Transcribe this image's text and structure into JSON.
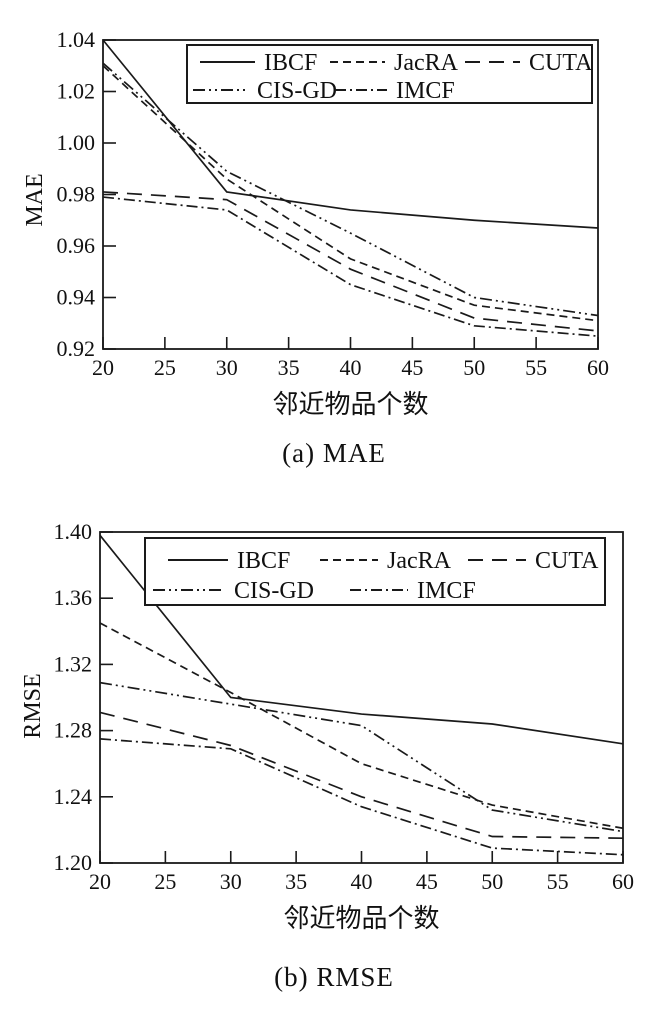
{
  "colors": {
    "line": "#1a1a1a",
    "text": "#111111",
    "background": "#ffffff"
  },
  "chart_data": [
    {
      "type": "line",
      "caption": "(a) MAE",
      "xlabel": "邻近物品个数",
      "ylabel": "MAE",
      "x": [
        20,
        30,
        40,
        50,
        60
      ],
      "x_ticks": [
        20,
        25,
        30,
        35,
        40,
        45,
        50,
        55,
        60
      ],
      "y_ticks": [
        0.92,
        0.94,
        0.96,
        0.98,
        1.0,
        1.02,
        1.04
      ],
      "xlim": [
        20,
        60
      ],
      "ylim": [
        0.92,
        1.04
      ],
      "grid": false,
      "legend_position": "top-inside",
      "legend_rows": [
        [
          "IBCF",
          "JacRA",
          "CUTA"
        ],
        [
          "CIS-GD",
          "IMCF"
        ]
      ],
      "series": [
        {
          "name": "IBCF",
          "line_style": "solid",
          "values": [
            1.04,
            0.981,
            0.974,
            0.97,
            0.967
          ]
        },
        {
          "name": "JacRA",
          "line_style": "dashed",
          "values": [
            1.03,
            0.986,
            0.955,
            0.937,
            0.931
          ]
        },
        {
          "name": "CUTA",
          "line_style": "long-dash",
          "values": [
            0.981,
            0.978,
            0.951,
            0.932,
            0.927
          ]
        },
        {
          "name": "CIS-GD",
          "line_style": "dash-dot-dot",
          "values": [
            1.031,
            0.989,
            0.965,
            0.94,
            0.933
          ]
        },
        {
          "name": "IMCF",
          "line_style": "dash-dot",
          "values": [
            0.979,
            0.974,
            0.945,
            0.929,
            0.925
          ]
        }
      ]
    },
    {
      "type": "line",
      "caption": "(b) RMSE",
      "xlabel": "邻近物品个数",
      "ylabel": "RMSE",
      "x": [
        20,
        30,
        40,
        50,
        60
      ],
      "x_ticks": [
        20,
        25,
        30,
        35,
        40,
        45,
        50,
        55,
        60
      ],
      "y_ticks": [
        1.2,
        1.24,
        1.28,
        1.32,
        1.36,
        1.4
      ],
      "xlim": [
        20,
        60
      ],
      "ylim": [
        1.2,
        1.4
      ],
      "grid": false,
      "legend_position": "top-inside",
      "legend_rows": [
        [
          "IBCF",
          "JacRA",
          "CUTA"
        ],
        [
          "CIS-GD",
          "IMCF"
        ]
      ],
      "series": [
        {
          "name": "IBCF",
          "line_style": "solid",
          "values": [
            1.398,
            1.3,
            1.29,
            1.284,
            1.272
          ]
        },
        {
          "name": "JacRA",
          "line_style": "dashed",
          "values": [
            1.345,
            1.303,
            1.26,
            1.235,
            1.221
          ]
        },
        {
          "name": "CUTA",
          "line_style": "long-dash",
          "values": [
            1.291,
            1.271,
            1.24,
            1.216,
            1.215
          ]
        },
        {
          "name": "CIS-GD",
          "line_style": "dash-dot-dot",
          "values": [
            1.309,
            1.296,
            1.283,
            1.232,
            1.219
          ]
        },
        {
          "name": "IMCF",
          "line_style": "dash-dot",
          "values": [
            1.275,
            1.269,
            1.234,
            1.209,
            1.205
          ]
        }
      ]
    }
  ]
}
